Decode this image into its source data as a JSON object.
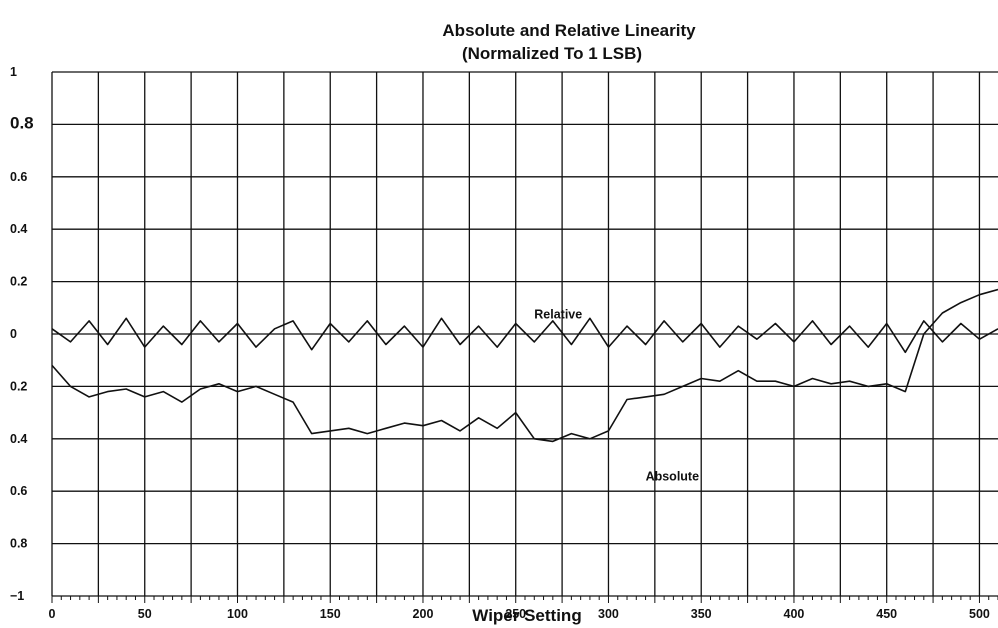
{
  "chart_data": {
    "type": "line",
    "title": "Absolute and Relative Linearity",
    "subtitle": "(Normalized To 1 LSB)",
    "xlabel": "Wiper Setting",
    "ylabel": "",
    "xlim": [
      0,
      510
    ],
    "ylim": [
      -1,
      1
    ],
    "grid": true,
    "x_ticks": [
      0,
      50,
      100,
      150,
      200,
      250,
      300,
      350,
      400,
      450,
      500
    ],
    "y_ticks": [
      {
        "value": 1,
        "label": "1"
      },
      {
        "value": 0.8,
        "label": "0.8"
      },
      {
        "value": 0.6,
        "label": "0.6"
      },
      {
        "value": 0.4,
        "label": "0.4"
      },
      {
        "value": 0.2,
        "label": "0.2"
      },
      {
        "value": 0,
        "label": "0"
      },
      {
        "value": -0.2,
        "label": "0.2"
      },
      {
        "value": -0.4,
        "label": "0.4"
      },
      {
        "value": -0.6,
        "label": "0.6"
      },
      {
        "value": -0.8,
        "label": "0.8"
      },
      {
        "value": -1,
        "label": "−1"
      }
    ],
    "annotations": [
      {
        "text": "Relative",
        "x": 260,
        "y": 0.06
      },
      {
        "text": "Absolute",
        "x": 320,
        "y": -0.56
      }
    ],
    "series": [
      {
        "name": "Relative",
        "color": "#111111",
        "x": [
          0,
          10,
          20,
          30,
          40,
          50,
          60,
          70,
          80,
          90,
          100,
          110,
          120,
          130,
          140,
          150,
          160,
          170,
          180,
          190,
          200,
          210,
          220,
          230,
          240,
          250,
          260,
          270,
          280,
          290,
          300,
          310,
          320,
          330,
          340,
          350,
          360,
          370,
          380,
          390,
          400,
          410,
          420,
          430,
          440,
          450,
          460,
          470,
          480,
          490,
          500,
          510
        ],
        "y": [
          0.02,
          -0.03,
          0.05,
          -0.04,
          0.06,
          -0.05,
          0.03,
          -0.04,
          0.05,
          -0.03,
          0.04,
          -0.05,
          0.02,
          0.05,
          -0.06,
          0.04,
          -0.03,
          0.05,
          -0.04,
          0.03,
          -0.05,
          0.06,
          -0.04,
          0.03,
          -0.05,
          0.04,
          -0.03,
          0.05,
          -0.04,
          0.06,
          -0.05,
          0.03,
          -0.04,
          0.05,
          -0.03,
          0.04,
          -0.05,
          0.03,
          -0.02,
          0.04,
          -0.03,
          0.05,
          -0.04,
          0.03,
          -0.05,
          0.04,
          -0.07,
          0.05,
          -0.03,
          0.04,
          -0.02,
          0.02
        ]
      },
      {
        "name": "Absolute",
        "color": "#111111",
        "x": [
          0,
          10,
          20,
          30,
          40,
          50,
          60,
          70,
          80,
          90,
          100,
          110,
          120,
          130,
          140,
          150,
          160,
          170,
          180,
          190,
          200,
          210,
          220,
          230,
          240,
          250,
          260,
          270,
          280,
          290,
          300,
          310,
          320,
          330,
          340,
          350,
          360,
          370,
          380,
          390,
          400,
          410,
          420,
          430,
          440,
          450,
          460,
          470,
          480,
          490,
          500,
          510
        ],
        "y": [
          -0.12,
          -0.2,
          -0.24,
          -0.22,
          -0.21,
          -0.24,
          -0.22,
          -0.26,
          -0.21,
          -0.19,
          -0.22,
          -0.2,
          -0.23,
          -0.26,
          -0.38,
          -0.37,
          -0.36,
          -0.38,
          -0.36,
          -0.34,
          -0.35,
          -0.33,
          -0.37,
          -0.32,
          -0.36,
          -0.3,
          -0.4,
          -0.41,
          -0.38,
          -0.4,
          -0.37,
          -0.25,
          -0.24,
          -0.23,
          -0.2,
          -0.17,
          -0.18,
          -0.14,
          -0.18,
          -0.18,
          -0.2,
          -0.17,
          -0.19,
          -0.18,
          -0.2,
          -0.19,
          -0.22,
          0.0,
          0.08,
          0.12,
          0.15,
          0.17
        ]
      }
    ]
  }
}
